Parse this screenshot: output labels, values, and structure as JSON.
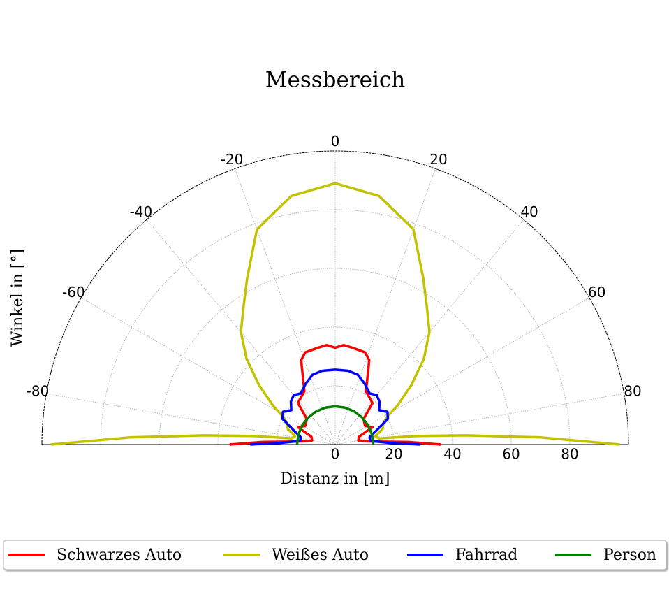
{
  "chart_data": {
    "type": "polar",
    "title": "Messbereich",
    "xlabel": "Distanz in [m]",
    "ylabel": "Winkel in [°]",
    "thetalim": [
      -90,
      90
    ],
    "thetaticks": [
      -80,
      -60,
      -40,
      -20,
      0,
      20,
      40,
      60,
      80
    ],
    "rlim": [
      0,
      100
    ],
    "rticks": [
      0,
      20,
      40,
      60,
      80
    ],
    "grid": true,
    "legend": "bottom",
    "series": [
      {
        "name": "Schwarzes Auto",
        "color": "#ff0000",
        "theta": [
          -90,
          -88,
          -85,
          -80,
          -72,
          -65,
          -58,
          -48,
          -42,
          -35,
          -30,
          -22,
          -18,
          -10,
          -5,
          0,
          5,
          10,
          18,
          22,
          30,
          35,
          42,
          48,
          58,
          65,
          72,
          80,
          85,
          88,
          90
        ],
        "values": [
          36,
          25,
          12,
          8,
          8.5,
          14,
          12,
          13,
          19,
          20,
          21,
          31,
          33,
          33.5,
          34,
          33,
          34,
          33.5,
          33,
          31,
          21,
          20,
          19,
          13,
          12,
          14,
          8.5,
          8,
          12,
          25,
          36
        ]
      },
      {
        "name": "Weißes Auto",
        "color": "#c2c200",
        "theta": [
          -90,
          -88,
          -86,
          -84,
          -82,
          -78,
          -72,
          -66,
          -62,
          -58,
          -52,
          -46,
          -40,
          -34,
          -28,
          -20,
          -10,
          0,
          10,
          20,
          28,
          34,
          40,
          46,
          52,
          58,
          62,
          66,
          72,
          78,
          82,
          84,
          86,
          88,
          90
        ],
        "values": [
          97,
          70,
          45,
          28,
          15,
          14,
          17,
          18,
          20,
          25,
          33,
          42,
          50,
          56,
          64,
          78,
          86,
          89,
          86,
          78,
          64,
          56,
          50,
          42,
          33,
          25,
          20,
          18,
          17,
          14,
          15,
          28,
          45,
          70,
          97
        ]
      },
      {
        "name": "Fahrrad",
        "color": "#0000ff",
        "theta": [
          -90,
          -88,
          -84,
          -78,
          -71,
          -64,
          -58,
          -52,
          -46,
          -40,
          -34,
          -26,
          -18,
          -10,
          0,
          10,
          18,
          26,
          34,
          40,
          46,
          52,
          58,
          64,
          71,
          78,
          84,
          88,
          90
        ],
        "values": [
          29,
          18,
          12,
          12,
          15,
          20,
          21,
          19,
          21,
          22,
          21,
          23,
          25,
          25.5,
          25.5,
          25.5,
          25,
          23,
          21,
          22,
          21,
          19,
          21,
          20,
          15,
          12,
          12,
          18,
          29
        ]
      },
      {
        "name": "Person",
        "color": "#008000",
        "theta": [
          -90,
          -75,
          -60,
          -45,
          -30,
          -15,
          0,
          15,
          30,
          45,
          60,
          75,
          90
        ],
        "values": [
          13,
          13,
          13,
          13,
          13,
          13,
          13,
          13,
          13,
          13,
          13,
          13,
          13
        ]
      }
    ]
  }
}
